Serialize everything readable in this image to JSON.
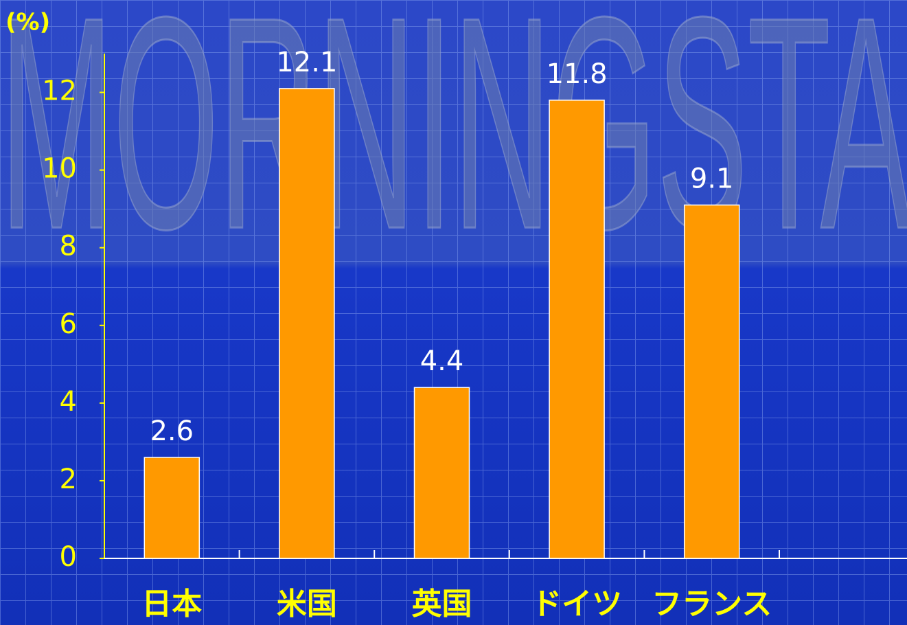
{
  "chart_data": {
    "type": "bar",
    "watermark": "MORNINGSTAR",
    "y_axis_label": "(%)",
    "categories": [
      "日本",
      "米国",
      "英国",
      "ドイツ",
      "フランス"
    ],
    "values": [
      2.6,
      12.1,
      4.4,
      11.8,
      9.1
    ],
    "color": "#ff9900",
    "ylim": [
      0,
      13
    ],
    "yticks": [
      0,
      2,
      4,
      6,
      8,
      10,
      12
    ],
    "grid": false
  }
}
